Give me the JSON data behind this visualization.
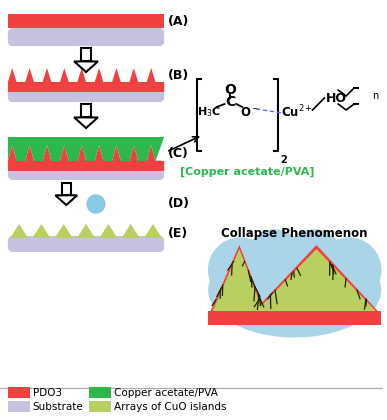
{
  "bg_color": "#ffffff",
  "red_color": "#f04040",
  "substrate_color": "#c8c0e0",
  "green_color": "#2db84b",
  "light_green_color": "#b8d060",
  "arrow_face": "#ffffff",
  "label_A": "(A)",
  "label_B": "(B)",
  "label_C": "(C)",
  "label_D": "(D)",
  "label_E": "(E)",
  "legend_pdo3": "PDO3",
  "legend_cu": "Copper acetate/PVA",
  "legend_sub": "Substrate",
  "legend_cuo": "Arrays of CuO islands",
  "collapse_title": "Collapse Phenomenon",
  "copper_label": "[Copper acetate/PVA]",
  "light_blue": "#aad4e8",
  "fig_w": 3.87,
  "fig_h": 4.2,
  "dpi": 100
}
